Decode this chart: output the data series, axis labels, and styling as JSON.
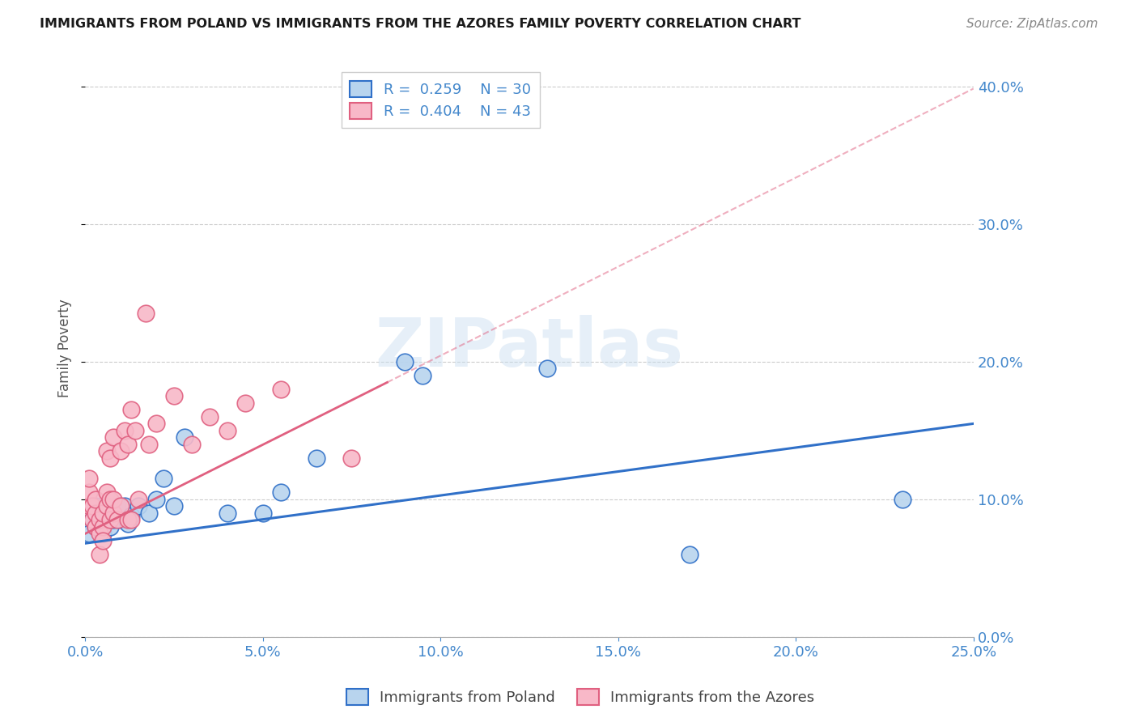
{
  "title": "IMMIGRANTS FROM POLAND VS IMMIGRANTS FROM THE AZORES FAMILY POVERTY CORRELATION CHART",
  "source": "Source: ZipAtlas.com",
  "ylabel_left": "Family Poverty",
  "legend_r_poland": "R =  0.259",
  "legend_n_poland": "N = 30",
  "legend_r_azores": "R =  0.404",
  "legend_n_azores": "N = 43",
  "xmin": 0.0,
  "xmax": 0.25,
  "ymin": 0.0,
  "ymax": 0.42,
  "yticks": [
    0.0,
    0.1,
    0.2,
    0.3,
    0.4
  ],
  "xticks": [
    0.0,
    0.05,
    0.1,
    0.15,
    0.2,
    0.25
  ],
  "color_poland_face": "#b8d4ee",
  "color_azores_face": "#f8b8c8",
  "color_poland_edge": "#3070c8",
  "color_azores_edge": "#e06080",
  "color_poland_line": "#3070c8",
  "color_azores_line": "#e06080",
  "color_ticks": "#4488cc",
  "watermark": "ZIPatlas",
  "poland_x": [
    0.001,
    0.002,
    0.003,
    0.003,
    0.004,
    0.005,
    0.005,
    0.006,
    0.007,
    0.008,
    0.009,
    0.01,
    0.011,
    0.012,
    0.013,
    0.015,
    0.018,
    0.02,
    0.022,
    0.025,
    0.028,
    0.04,
    0.05,
    0.055,
    0.065,
    0.09,
    0.095,
    0.13,
    0.17,
    0.23
  ],
  "poland_y": [
    0.075,
    0.085,
    0.095,
    0.08,
    0.09,
    0.085,
    0.075,
    0.09,
    0.08,
    0.085,
    0.095,
    0.085,
    0.095,
    0.082,
    0.088,
    0.095,
    0.09,
    0.1,
    0.115,
    0.095,
    0.145,
    0.09,
    0.09,
    0.105,
    0.13,
    0.2,
    0.19,
    0.195,
    0.06,
    0.1
  ],
  "azores_x": [
    0.001,
    0.001,
    0.001,
    0.002,
    0.002,
    0.003,
    0.003,
    0.003,
    0.004,
    0.004,
    0.004,
    0.005,
    0.005,
    0.005,
    0.006,
    0.006,
    0.006,
    0.007,
    0.007,
    0.007,
    0.008,
    0.008,
    0.008,
    0.009,
    0.01,
    0.01,
    0.011,
    0.012,
    0.012,
    0.013,
    0.013,
    0.014,
    0.015,
    0.017,
    0.018,
    0.02,
    0.025,
    0.03,
    0.035,
    0.04,
    0.045,
    0.055,
    0.075
  ],
  "azores_y": [
    0.095,
    0.105,
    0.115,
    0.085,
    0.095,
    0.08,
    0.09,
    0.1,
    0.075,
    0.085,
    0.06,
    0.08,
    0.09,
    0.07,
    0.095,
    0.105,
    0.135,
    0.085,
    0.1,
    0.13,
    0.09,
    0.1,
    0.145,
    0.085,
    0.095,
    0.135,
    0.15,
    0.085,
    0.14,
    0.085,
    0.165,
    0.15,
    0.1,
    0.235,
    0.14,
    0.155,
    0.175,
    0.14,
    0.16,
    0.15,
    0.17,
    0.18,
    0.13
  ],
  "trend_poland_x0": 0.0,
  "trend_poland_x1": 0.25,
  "trend_poland_y0": 0.068,
  "trend_poland_y1": 0.155,
  "trend_azores_x0": 0.0,
  "trend_azores_x1": 0.085,
  "trend_azores_y0": 0.075,
  "trend_azores_y1": 0.185
}
